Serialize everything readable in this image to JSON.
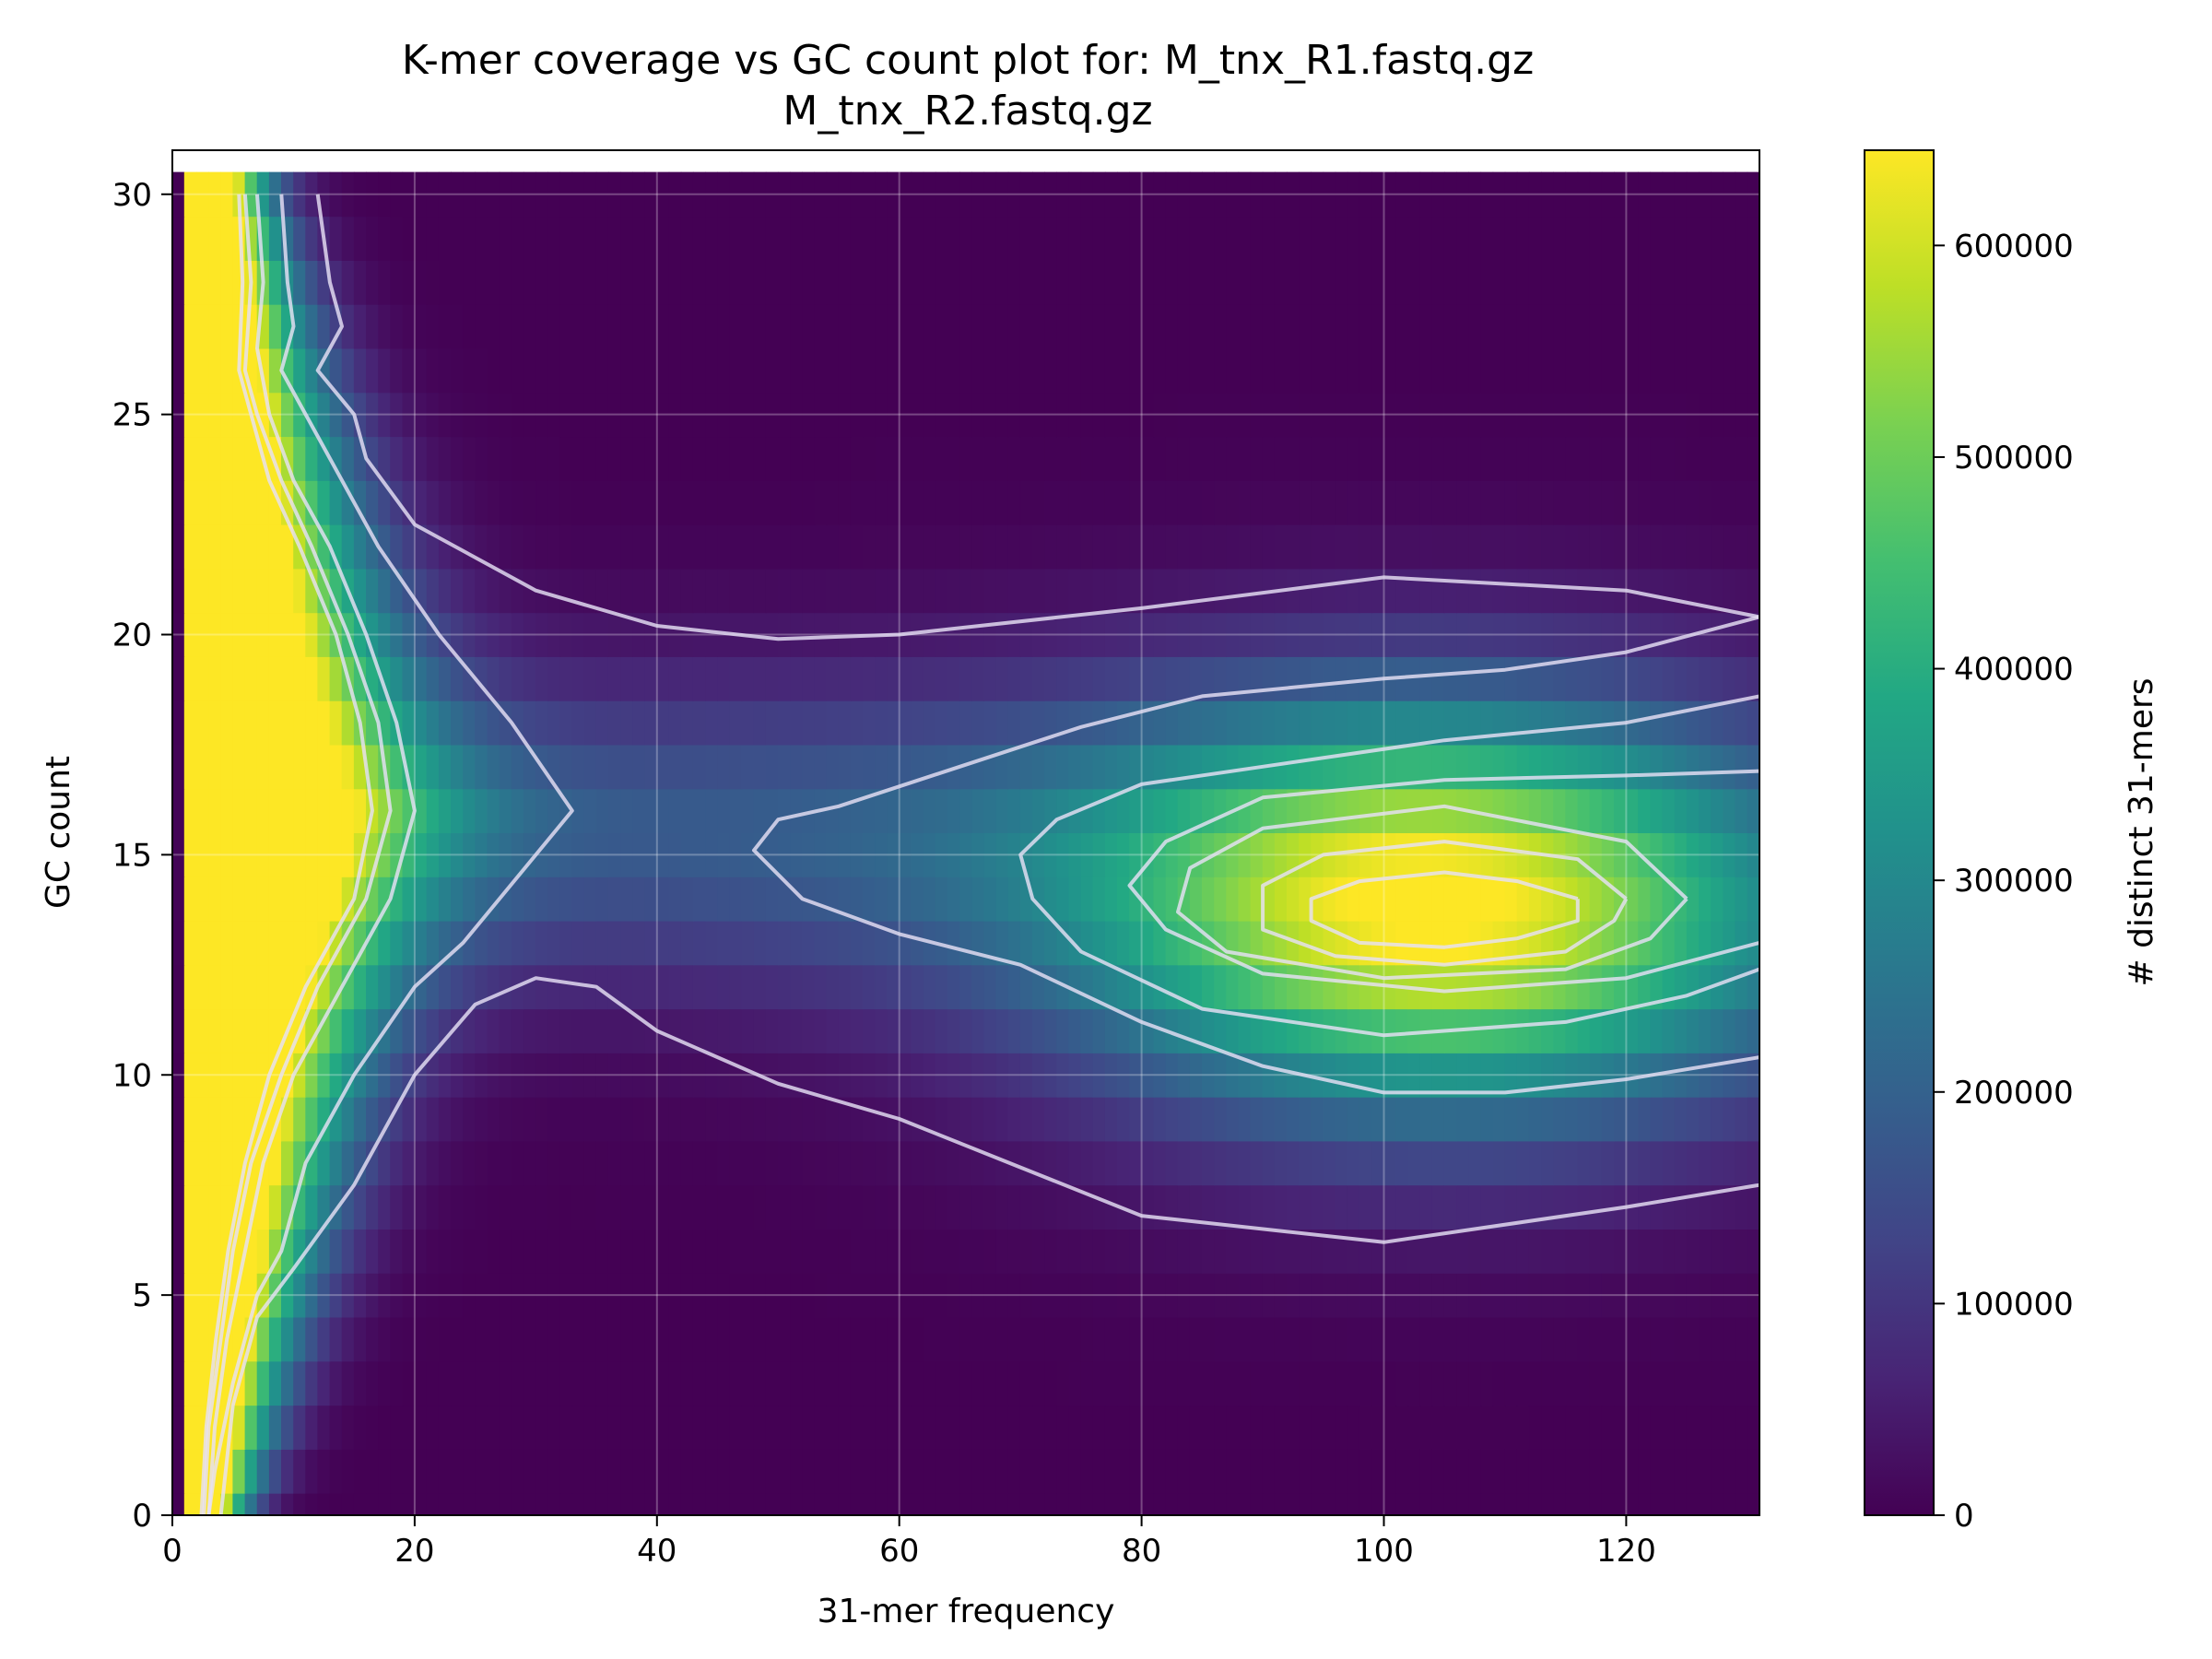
{
  "chart_data": {
    "type": "heatmap",
    "title_line1": "K-mer coverage vs GC count plot for: M_tnx_R1.fastq.gz",
    "title_line2": "M_tnx_R2.fastq.gz",
    "xlabel": "31-mer frequency",
    "ylabel": "GC count",
    "colorbar_label": "# distinct 31-mers",
    "xlim": [
      0,
      131
    ],
    "ylim": [
      0,
      31
    ],
    "xticks": [
      0,
      20,
      40,
      60,
      80,
      100,
      120
    ],
    "yticks": [
      0,
      5,
      10,
      15,
      20,
      25,
      30
    ],
    "colorbar_ticks": [
      0,
      100000,
      200000,
      300000,
      400000,
      500000,
      600000
    ],
    "colorbar_range": [
      0,
      645000
    ],
    "colormap": "viridis",
    "grid": true,
    "error_peak": {
      "x_max": 4,
      "gc_center": 16,
      "spread_left_coverage": 14
    },
    "main_peak": {
      "x_center": 105,
      "gc_center": 13.7,
      "peak_value": 630000
    },
    "contours": [
      {
        "points": [
          [
            12,
            30
          ],
          [
            13,
            28
          ],
          [
            14,
            27
          ],
          [
            12,
            26
          ],
          [
            15,
            25
          ],
          [
            16,
            24
          ],
          [
            20,
            22.5
          ],
          [
            30,
            21
          ],
          [
            40,
            20.2
          ],
          [
            50,
            19.9
          ],
          [
            60,
            20.0
          ],
          [
            80,
            20.6
          ],
          [
            100,
            21.3
          ],
          [
            120,
            21.0
          ],
          [
            131,
            20.4
          ]
        ]
      },
      {
        "points": [
          [
            9,
            30
          ],
          [
            9.5,
            28
          ],
          [
            10,
            27
          ],
          [
            9,
            26
          ],
          [
            11,
            25
          ],
          [
            13,
            24
          ],
          [
            17,
            22
          ],
          [
            22,
            20
          ],
          [
            28,
            18
          ],
          [
            33,
            16
          ],
          [
            30,
            15
          ],
          [
            24,
            13
          ],
          [
            20,
            12
          ],
          [
            15,
            10
          ],
          [
            11,
            8
          ],
          [
            9,
            6
          ],
          [
            7,
            5
          ],
          [
            5,
            3
          ],
          [
            3.5,
            1
          ],
          [
            3,
            0
          ]
        ]
      },
      {
        "points": [
          [
            131,
            7.5
          ],
          [
            120,
            7.0
          ],
          [
            100,
            6.2
          ],
          [
            80,
            6.8
          ],
          [
            70,
            7.9
          ],
          [
            60,
            9.0
          ],
          [
            50,
            9.8
          ],
          [
            40,
            11.0
          ],
          [
            35,
            12.0
          ],
          [
            30,
            12.2
          ],
          [
            25,
            11.6
          ],
          [
            20,
            10.0
          ],
          [
            15,
            7.5
          ],
          [
            10,
            5.6
          ],
          [
            7,
            4.5
          ],
          [
            5,
            2.5
          ],
          [
            4,
            0
          ]
        ]
      },
      {
        "points": [
          [
            131,
            20.4
          ],
          [
            120,
            19.6
          ],
          [
            110,
            19.2
          ],
          [
            100,
            19.0
          ],
          [
            85,
            18.6
          ],
          [
            75,
            17.9
          ],
          [
            65,
            17.0
          ],
          [
            55,
            16.1
          ],
          [
            50,
            15.8
          ],
          [
            48,
            15.1
          ],
          [
            52,
            14.0
          ],
          [
            60,
            13.2
          ],
          [
            70,
            12.5
          ],
          [
            80,
            11.2
          ],
          [
            90,
            10.2
          ],
          [
            100,
            9.6
          ],
          [
            110,
            9.6
          ],
          [
            120,
            9.9
          ],
          [
            131,
            10.4
          ]
        ]
      },
      {
        "points": [
          [
            131,
            18.6
          ],
          [
            120,
            18.0
          ],
          [
            105,
            17.6
          ],
          [
            90,
            17.0
          ],
          [
            80,
            16.6
          ],
          [
            73,
            15.8
          ],
          [
            70,
            15.0
          ],
          [
            71,
            14.0
          ],
          [
            75,
            12.8
          ],
          [
            85,
            11.5
          ],
          [
            100,
            10.9
          ],
          [
            115,
            11.2
          ],
          [
            125,
            11.8
          ],
          [
            131,
            12.4
          ]
        ]
      },
      {
        "points": [
          [
            131,
            16.9
          ],
          [
            120,
            16.8
          ],
          [
            105,
            16.7
          ],
          [
            90,
            16.3
          ],
          [
            82,
            15.3
          ],
          [
            79,
            14.3
          ],
          [
            82,
            13.3
          ],
          [
            90,
            12.3
          ],
          [
            105,
            11.9
          ],
          [
            120,
            12.2
          ],
          [
            131,
            13.0
          ]
        ]
      },
      {
        "points": [
          [
            125,
            14.0
          ],
          [
            120,
            15.3
          ],
          [
            105,
            16.1
          ],
          [
            90,
            15.6
          ],
          [
            84,
            14.7
          ],
          [
            83,
            13.7
          ],
          [
            87,
            12.8
          ],
          [
            100,
            12.2
          ],
          [
            115,
            12.4
          ],
          [
            122,
            13.1
          ],
          [
            125,
            14.0
          ]
        ]
      },
      {
        "points": [
          [
            120,
            14.0
          ],
          [
            116,
            14.9
          ],
          [
            105,
            15.3
          ],
          [
            95,
            15.0
          ],
          [
            90,
            14.3
          ],
          [
            90,
            13.3
          ],
          [
            96,
            12.7
          ],
          [
            105,
            12.5
          ],
          [
            115,
            12.8
          ],
          [
            119,
            13.5
          ],
          [
            120,
            14.0
          ]
        ]
      },
      {
        "points": [
          [
            116,
            14.0
          ],
          [
            111,
            14.4
          ],
          [
            105,
            14.6
          ],
          [
            98,
            14.4
          ],
          [
            94,
            14.0
          ],
          [
            94,
            13.5
          ],
          [
            98,
            13.0
          ],
          [
            105,
            12.9
          ],
          [
            111,
            13.1
          ],
          [
            116,
            13.5
          ],
          [
            116,
            14.0
          ]
        ]
      },
      {
        "points": [
          [
            7,
            30
          ],
          [
            7.5,
            28
          ],
          [
            7,
            26.5
          ],
          [
            8,
            25
          ],
          [
            10,
            23.5
          ],
          [
            13,
            22
          ],
          [
            16,
            20
          ],
          [
            18.5,
            18
          ],
          [
            20,
            16
          ],
          [
            18,
            14
          ],
          [
            14,
            12
          ],
          [
            10,
            10
          ],
          [
            7.5,
            8
          ],
          [
            6,
            6
          ],
          [
            4.5,
            4
          ],
          [
            3.5,
            2
          ],
          [
            3,
            0
          ]
        ]
      },
      {
        "points": [
          [
            6,
            30
          ],
          [
            6.5,
            28
          ],
          [
            6,
            26
          ],
          [
            7,
            25
          ],
          [
            9,
            23.5
          ],
          [
            11.5,
            22
          ],
          [
            14.5,
            20
          ],
          [
            17,
            18
          ],
          [
            18,
            16
          ],
          [
            16,
            14
          ],
          [
            12,
            12
          ],
          [
            9,
            10
          ],
          [
            6.5,
            8
          ],
          [
            5,
            6
          ],
          [
            4,
            4
          ],
          [
            3,
            2
          ],
          [
            2.6,
            0
          ]
        ]
      },
      {
        "points": [
          [
            5.5,
            30
          ],
          [
            5.8,
            28
          ],
          [
            5.5,
            26
          ],
          [
            6.5,
            25
          ],
          [
            8,
            23.5
          ],
          [
            10.5,
            22
          ],
          [
            13.5,
            20
          ],
          [
            15.5,
            18
          ],
          [
            16.5,
            16
          ],
          [
            15,
            14
          ],
          [
            11,
            12
          ],
          [
            8,
            10
          ],
          [
            6,
            8
          ],
          [
            4.6,
            6
          ],
          [
            3.6,
            4
          ],
          [
            2.8,
            2
          ],
          [
            2.4,
            0
          ]
        ]
      }
    ]
  }
}
